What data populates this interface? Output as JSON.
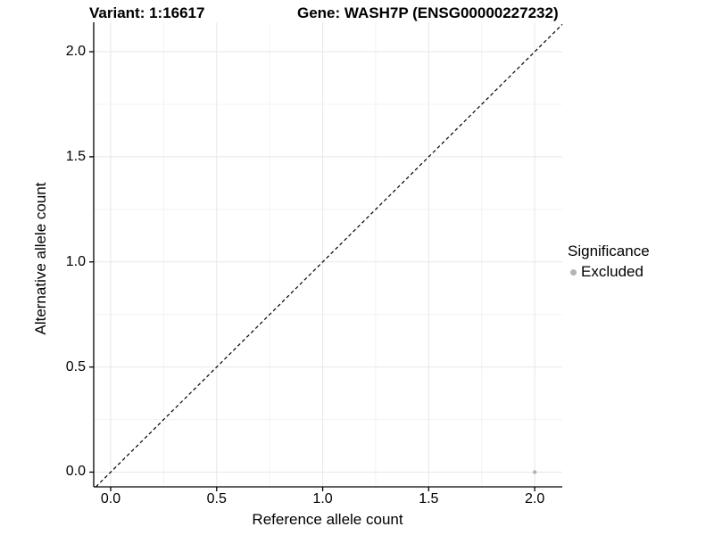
{
  "figure": {
    "title_left": "Variant: 1:16617",
    "title_right": "Gene: WASH7P (ENSG00000227232)"
  },
  "chart_data": {
    "type": "scatter",
    "title": "Variant: 1:16617   Gene: WASH7P (ENSG00000227232)",
    "xlabel": "Reference allele count",
    "ylabel": "Alternative allele count",
    "xlim": [
      -0.08,
      2.13
    ],
    "ylim": [
      -0.07,
      2.14
    ],
    "xticks": [
      0.0,
      0.5,
      1.0,
      1.5,
      2.0
    ],
    "yticks": [
      0.0,
      0.5,
      1.0,
      1.5,
      2.0
    ],
    "xtick_labels": [
      "0.0",
      "0.5",
      "1.0",
      "1.5",
      "2.0"
    ],
    "ytick_labels": [
      "0.0",
      "0.5",
      "1.0",
      "1.5",
      "2.0"
    ],
    "grid": "major and minor gridlines on, light gray",
    "series": [
      {
        "name": "Excluded",
        "color": "#b4b4b4",
        "points": [
          {
            "x": 2.0,
            "y": 0.0
          }
        ]
      }
    ],
    "reference_line": {
      "type": "identity y=x",
      "style": "dashed",
      "color": "#000000"
    },
    "legend": {
      "title": "Significance",
      "position": "right",
      "entries": [
        {
          "label": "Excluded",
          "color": "#b4b4b4"
        }
      ]
    },
    "colors": {
      "background": "#ffffff",
      "axis": "#000000",
      "grid_major": "#e7e7e7",
      "grid_minor": "#f3f3f3",
      "text": "#000000"
    }
  }
}
